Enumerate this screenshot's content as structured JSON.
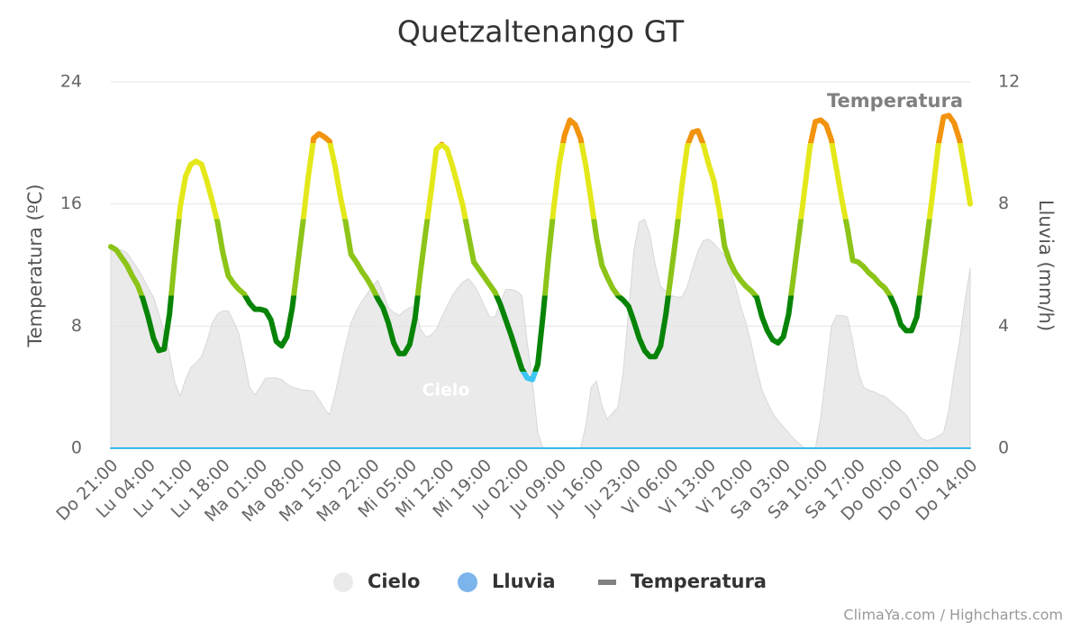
{
  "chart_data": {
    "type": "line",
    "title": "Quetzaltenango GT",
    "y_label": "Temperatura (ºC)",
    "y2_label": "Lluvia (mm/h)",
    "credits": "ClimaYa.com / Highcharts.com",
    "ylim": [
      0,
      24
    ],
    "yticks": [
      0,
      8,
      16,
      24
    ],
    "y2lim": [
      0,
      12
    ],
    "y2ticks": [
      0,
      4,
      8,
      12
    ],
    "grid": true,
    "legend": "bottom",
    "categories": [
      "Do 21:00",
      null,
      null,
      null,
      null,
      null,
      null,
      "Lu 04:00",
      null,
      null,
      null,
      null,
      null,
      null,
      "Lu 11:00",
      null,
      null,
      null,
      null,
      null,
      null,
      "Lu 18:00",
      null,
      null,
      null,
      null,
      null,
      null,
      "Ma 01:00",
      null,
      null,
      null,
      null,
      null,
      null,
      "Ma 08:00",
      null,
      null,
      null,
      null,
      null,
      null,
      "Ma 15:00",
      null,
      null,
      null,
      null,
      null,
      null,
      "Ma 22:00",
      null,
      null,
      null,
      null,
      null,
      null,
      "Mi 05:00",
      null,
      null,
      null,
      null,
      null,
      null,
      "Mi 12:00",
      null,
      null,
      null,
      null,
      null,
      null,
      "Mi 19:00",
      null,
      null,
      null,
      null,
      null,
      null,
      "Ju 02:00",
      null,
      null,
      null,
      null,
      null,
      null,
      "Ju 09:00",
      null,
      null,
      null,
      null,
      null,
      null,
      "Ju 16:00",
      null,
      null,
      null,
      null,
      null,
      null,
      "Ju 23:00",
      null,
      null,
      null,
      null,
      null,
      null,
      "Vi 06:00",
      null,
      null,
      null,
      null,
      null,
      null,
      "Vi 13:00",
      null,
      null,
      null,
      null,
      null,
      null,
      "Vi 20:00",
      null,
      null,
      null,
      null,
      null,
      null,
      "Sa 03:00",
      null,
      null,
      null,
      null,
      null,
      null,
      "Sa 10:00",
      null,
      null,
      null,
      null,
      null,
      null,
      "Sa 17:00",
      null,
      null,
      null,
      null,
      null,
      null,
      "Do 00:00",
      null,
      null,
      null,
      null,
      null,
      null,
      "Do 07:00",
      null,
      null,
      null,
      null,
      null,
      null,
      "Do 14:00"
    ],
    "series": [
      {
        "name": "Cielo",
        "type": "area",
        "color": "#e3e3e3",
        "values": [
          13.0,
          13.0,
          13.0,
          12.8,
          12.3,
          11.8,
          11.2,
          10.5,
          9.9,
          8.8,
          7.6,
          6.2,
          4.3,
          3.4,
          4.5,
          5.3,
          5.6,
          6.0,
          7.0,
          8.2,
          8.8,
          9.0,
          9.0,
          8.3,
          7.5,
          5.8,
          4.0,
          3.5,
          4.0,
          4.6,
          4.6,
          4.6,
          4.5,
          4.2,
          4.0,
          3.9,
          3.8,
          3.8,
          3.7,
          3.2,
          2.6,
          2.2,
          3.5,
          5.2,
          6.8,
          8.2,
          9.0,
          9.6,
          10.1,
          10.6,
          11.0,
          10.2,
          9.2,
          8.9,
          8.7,
          9.0,
          9.2,
          9.3,
          7.8,
          7.3,
          7.4,
          7.8,
          8.6,
          9.3,
          10.0,
          10.5,
          10.9,
          11.1,
          10.7,
          10.1,
          9.3,
          8.6,
          8.6,
          9.6,
          10.4,
          10.4,
          10.3,
          10.0,
          7.0,
          4.3,
          1.0,
          0,
          0,
          0,
          0,
          0,
          0,
          0,
          0,
          1.5,
          4.0,
          4.4,
          2.8,
          1.9,
          2.3,
          2.7,
          5.0,
          9.0,
          13.0,
          14.8,
          15.0,
          14.0,
          12.0,
          10.6,
          10.3,
          10.0,
          9.9,
          9.9,
          10.6,
          11.8,
          12.9,
          13.6,
          13.7,
          13.4,
          13.0,
          12.6,
          11.8,
          10.6,
          9.3,
          8.2,
          6.8,
          5.2,
          3.8,
          3.0,
          2.3,
          1.8,
          1.4,
          1.0,
          0.6,
          0.3,
          0,
          0,
          0,
          2.0,
          5.0,
          8.0,
          8.7,
          8.7,
          8.6,
          7.0,
          5.0,
          4.0,
          3.8,
          3.7,
          3.5,
          3.4,
          3.1,
          2.8,
          2.5,
          2.2,
          1.6,
          1.0,
          0.6,
          0.5,
          0.6,
          0.8,
          1.0,
          2.5,
          5.0,
          7.0,
          9.6,
          11.8
        ]
      },
      {
        "name": "Lluvia",
        "type": "line",
        "axis": "y2",
        "color": "#7cb5ec",
        "line_color": "#35b8ec",
        "values": [
          0,
          0,
          0,
          0,
          0,
          0,
          0,
          0,
          0,
          0,
          0,
          0,
          0,
          0,
          0,
          0,
          0,
          0,
          0,
          0,
          0,
          0,
          0,
          0,
          0,
          0,
          0,
          0,
          0,
          0,
          0,
          0,
          0,
          0,
          0,
          0,
          0,
          0,
          0,
          0,
          0,
          0,
          0,
          0,
          0,
          0,
          0,
          0,
          0,
          0,
          0,
          0,
          0,
          0,
          0,
          0,
          0,
          0,
          0,
          0,
          0,
          0,
          0,
          0,
          0,
          0,
          0,
          0,
          0,
          0,
          0,
          0,
          0,
          0,
          0,
          0,
          0,
          0,
          0,
          0,
          0,
          0,
          0,
          0,
          0,
          0,
          0,
          0,
          0,
          0,
          0,
          0,
          0,
          0,
          0,
          0,
          0,
          0,
          0,
          0,
          0,
          0,
          0,
          0,
          0,
          0,
          0,
          0,
          0,
          0,
          0,
          0,
          0,
          0,
          0,
          0,
          0,
          0,
          0,
          0,
          0,
          0,
          0,
          0,
          0,
          0,
          0,
          0,
          0,
          0,
          0,
          0,
          0,
          0,
          0,
          0,
          0,
          0,
          0,
          0,
          0,
          0,
          0,
          0,
          0,
          0,
          0,
          0,
          0,
          0,
          0,
          0,
          0,
          0,
          0,
          0,
          0,
          0,
          0,
          0,
          0,
          0
        ]
      },
      {
        "name": "Temperatura",
        "type": "line",
        "color": "#808080",
        "zones": [
          {
            "max": 5,
            "color": "#3ec6f2"
          },
          {
            "max": 10,
            "color": "#078407"
          },
          {
            "max": 15,
            "color": "#8cc418"
          },
          {
            "max": 20,
            "color": "#e4e81a"
          },
          {
            "color": "#f2940f"
          }
        ],
        "values": [
          13.2,
          13.0,
          12.5,
          12.0,
          11.3,
          10.7,
          9.8,
          8.6,
          7.2,
          6.4,
          6.5,
          8.8,
          12.5,
          15.8,
          17.8,
          18.6,
          18.8,
          18.6,
          17.5,
          16.2,
          14.8,
          12.8,
          11.3,
          10.8,
          10.4,
          10.1,
          9.5,
          9.1,
          9.1,
          9.0,
          8.4,
          7.0,
          6.7,
          7.3,
          9.2,
          12.0,
          14.8,
          17.8,
          20.3,
          20.6,
          20.4,
          20.1,
          18.5,
          16.5,
          14.8,
          12.7,
          12.2,
          11.6,
          11.1,
          10.5,
          9.8,
          9.2,
          8.2,
          6.9,
          6.2,
          6.2,
          6.8,
          8.5,
          11.5,
          14.2,
          16.8,
          19.6,
          19.9,
          19.6,
          18.5,
          17.2,
          15.8,
          14.0,
          12.2,
          11.7,
          11.2,
          10.7,
          10.2,
          9.4,
          8.4,
          7.4,
          6.3,
          5.2,
          4.6,
          4.5,
          5.5,
          8.8,
          12.5,
          15.8,
          18.6,
          20.5,
          21.5,
          21.2,
          20.3,
          18.5,
          16.2,
          13.8,
          12.0,
          11.2,
          10.5,
          10.0,
          9.7,
          9.3,
          8.3,
          7.2,
          6.4,
          6.0,
          6.0,
          6.7,
          8.8,
          11.5,
          14.2,
          17.2,
          19.8,
          20.7,
          20.8,
          19.9,
          18.6,
          17.5,
          15.6,
          13.2,
          12.2,
          11.5,
          11.0,
          10.6,
          10.3,
          9.9,
          8.6,
          7.7,
          7.1,
          6.9,
          7.3,
          8.8,
          11.5,
          14.2,
          17.0,
          19.8,
          21.4,
          21.5,
          21.2,
          20.2,
          18.2,
          16.2,
          14.4,
          12.3,
          12.2,
          11.9,
          11.5,
          11.2,
          10.8,
          10.5,
          10.0,
          9.2,
          8.1,
          7.7,
          7.7,
          8.6,
          11.3,
          14.0,
          16.8,
          19.8,
          21.7,
          21.8,
          21.3,
          20.2,
          18.2,
          16.0
        ]
      }
    ]
  }
}
